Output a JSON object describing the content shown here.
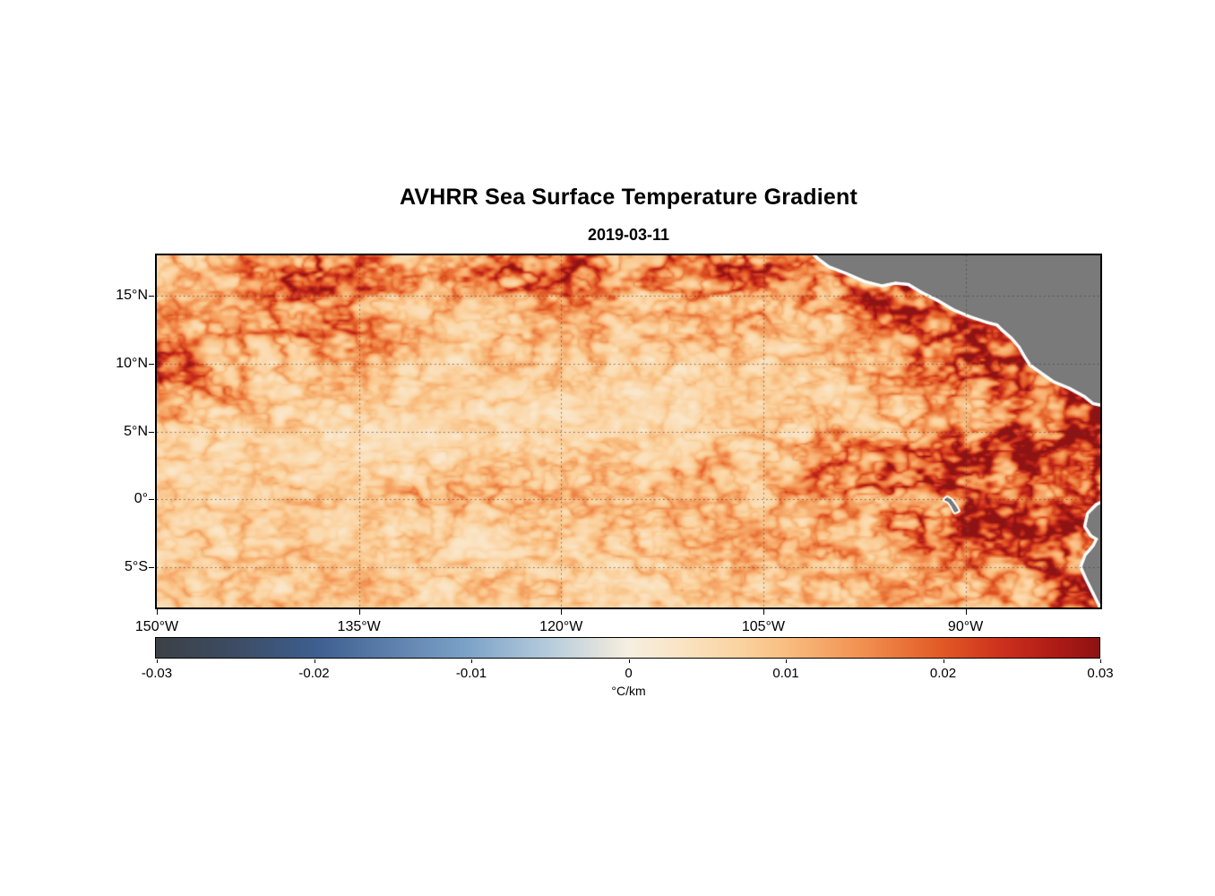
{
  "chart_data": {
    "type": "heatmap",
    "title": "AVHRR Sea Surface Temperature Gradient",
    "date": "2019-03-11",
    "lon_range": [
      -150,
      -80
    ],
    "lat_range": [
      18,
      -8
    ],
    "grid": true,
    "x_ticks": [
      {
        "value": -150,
        "label": "150°W"
      },
      {
        "value": -135,
        "label": "135°W"
      },
      {
        "value": -120,
        "label": "120°W"
      },
      {
        "value": -105,
        "label": "105°W"
      },
      {
        "value": -90,
        "label": "90°W"
      }
    ],
    "y_ticks": [
      {
        "value": 15,
        "label": "15°N"
      },
      {
        "value": 10,
        "label": "10°N"
      },
      {
        "value": 5,
        "label": "5°N"
      },
      {
        "value": 0,
        "label": "0°"
      },
      {
        "value": -5,
        "label": "5°S"
      }
    ],
    "colorbar": {
      "min": -0.03,
      "max": 0.03,
      "label": "°C/km",
      "ticks": [
        {
          "value": -0.03,
          "label": "-0.03"
        },
        {
          "value": -0.02,
          "label": "-0.02"
        },
        {
          "value": -0.01,
          "label": "-0.01"
        },
        {
          "value": 0,
          "label": "0"
        },
        {
          "value": 0.01,
          "label": "0.01"
        },
        {
          "value": 0.02,
          "label": "0.02"
        },
        {
          "value": 0.03,
          "label": "0.03"
        }
      ]
    },
    "colormap_stops": [
      {
        "t": 0.0,
        "c": "#3c4147"
      },
      {
        "t": 0.08,
        "c": "#3d4c63"
      },
      {
        "t": 0.17,
        "c": "#3e5f90"
      },
      {
        "t": 0.33,
        "c": "#7da3c9"
      },
      {
        "t": 0.42,
        "c": "#b9cede"
      },
      {
        "t": 0.48,
        "c": "#e8e6dd"
      },
      {
        "t": 0.5,
        "c": "#f6efe1"
      },
      {
        "t": 0.55,
        "c": "#fae6c8"
      },
      {
        "t": 0.62,
        "c": "#fbd3a0"
      },
      {
        "t": 0.67,
        "c": "#f9bd7f"
      },
      {
        "t": 0.75,
        "c": "#f29050"
      },
      {
        "t": 0.83,
        "c": "#e35c26"
      },
      {
        "t": 0.9,
        "c": "#cc2f1d"
      },
      {
        "t": 0.96,
        "c": "#ab1a16"
      },
      {
        "t": 1.0,
        "c": "#8e1313"
      }
    ],
    "land_color": "#7a7a7a",
    "coast_halo_color": "#ffffff",
    "magnitude_grid": {
      "description": "Approximate SST gradient magnitude (degC/km) read off the map on a coarse lon/lat grid; filament texture is procedurally superimposed.",
      "lons": [
        -150,
        -145,
        -140,
        -135,
        -130,
        -125,
        -120,
        -115,
        -110,
        -105,
        -100,
        -95,
        -90,
        -85,
        -80
      ],
      "lats": [
        18,
        16,
        14,
        12,
        10,
        8,
        6,
        4,
        2,
        0,
        -2,
        -4,
        -6,
        -8
      ],
      "values": [
        [
          0.008,
          0.012,
          0.018,
          0.015,
          0.012,
          0.02,
          0.022,
          0.015,
          0.02,
          0.018,
          0.015,
          0.012,
          0.01,
          0.0,
          0.0
        ],
        [
          0.006,
          0.01,
          0.02,
          0.018,
          0.01,
          0.015,
          0.02,
          0.012,
          0.015,
          0.02,
          0.012,
          0.022,
          0.015,
          0.0,
          0.0
        ],
        [
          0.012,
          0.008,
          0.015,
          0.012,
          0.008,
          0.01,
          0.012,
          0.01,
          0.012,
          0.012,
          0.01,
          0.025,
          0.012,
          0.0,
          0.0
        ],
        [
          0.01,
          0.012,
          0.014,
          0.015,
          0.008,
          0.008,
          0.01,
          0.008,
          0.01,
          0.008,
          0.008,
          0.012,
          0.024,
          0.018,
          0.0
        ],
        [
          0.022,
          0.01,
          0.008,
          0.01,
          0.006,
          0.008,
          0.008,
          0.006,
          0.006,
          0.006,
          0.008,
          0.012,
          0.022,
          0.024,
          0.0
        ],
        [
          0.015,
          0.012,
          0.006,
          0.008,
          0.006,
          0.006,
          0.006,
          0.005,
          0.005,
          0.006,
          0.006,
          0.01,
          0.015,
          0.018,
          0.024
        ],
        [
          0.01,
          0.008,
          0.006,
          0.005,
          0.005,
          0.005,
          0.005,
          0.004,
          0.005,
          0.006,
          0.008,
          0.01,
          0.012,
          0.02,
          0.028
        ],
        [
          0.008,
          0.006,
          0.005,
          0.005,
          0.004,
          0.005,
          0.006,
          0.006,
          0.008,
          0.008,
          0.012,
          0.015,
          0.018,
          0.022,
          0.024
        ],
        [
          0.006,
          0.006,
          0.006,
          0.005,
          0.006,
          0.008,
          0.008,
          0.008,
          0.01,
          0.012,
          0.018,
          0.022,
          0.025,
          0.02,
          0.022
        ],
        [
          0.008,
          0.006,
          0.008,
          0.006,
          0.012,
          0.01,
          0.008,
          0.008,
          0.008,
          0.01,
          0.012,
          0.015,
          0.02,
          0.015,
          0.018
        ],
        [
          0.006,
          0.008,
          0.006,
          0.006,
          0.006,
          0.006,
          0.008,
          0.008,
          0.01,
          0.01,
          0.012,
          0.015,
          0.022,
          0.025,
          0.022
        ],
        [
          0.008,
          0.006,
          0.008,
          0.006,
          0.008,
          0.006,
          0.006,
          0.008,
          0.008,
          0.01,
          0.01,
          0.012,
          0.015,
          0.02,
          0.025
        ],
        [
          0.006,
          0.008,
          0.006,
          0.008,
          0.006,
          0.008,
          0.008,
          0.006,
          0.008,
          0.008,
          0.01,
          0.01,
          0.012,
          0.015,
          0.028
        ],
        [
          0.008,
          0.006,
          0.008,
          0.006,
          0.008,
          0.006,
          0.008,
          0.008,
          0.006,
          0.008,
          0.008,
          0.01,
          0.01,
          0.012,
          0.02
        ]
      ]
    },
    "land_polygons": {
      "central_america": [
        [
          -101.6,
          18.6
        ],
        [
          -100.9,
          17.9
        ],
        [
          -100.1,
          17.3
        ],
        [
          -98.8,
          16.8
        ],
        [
          -97.4,
          16.2
        ],
        [
          -96.2,
          15.9
        ],
        [
          -95.2,
          16.1
        ],
        [
          -94.2,
          16.0
        ],
        [
          -93.2,
          15.4
        ],
        [
          -92.0,
          14.8
        ],
        [
          -90.8,
          14.1
        ],
        [
          -89.6,
          13.6
        ],
        [
          -88.4,
          13.2
        ],
        [
          -87.6,
          13.0
        ],
        [
          -87.2,
          12.6
        ],
        [
          -86.5,
          12.0
        ],
        [
          -85.9,
          11.3
        ],
        [
          -85.5,
          10.6
        ],
        [
          -85.1,
          10.0
        ],
        [
          -84.4,
          9.5
        ],
        [
          -83.4,
          8.8
        ],
        [
          -82.2,
          8.3
        ],
        [
          -81.1,
          7.7
        ],
        [
          -80.5,
          7.2
        ],
        [
          -80.0,
          7.1
        ],
        [
          -79.0,
          7.6
        ],
        [
          -78.5,
          19.0
        ]
      ],
      "south_america": [
        [
          -79.4,
          -0.2
        ],
        [
          -80.2,
          -0.5
        ],
        [
          -80.8,
          -1.1
        ],
        [
          -81.0,
          -2.0
        ],
        [
          -80.6,
          -2.6
        ],
        [
          -80.1,
          -2.9
        ],
        [
          -80.4,
          -3.5
        ],
        [
          -81.0,
          -4.2
        ],
        [
          -81.3,
          -5.0
        ],
        [
          -80.9,
          -5.9
        ],
        [
          -80.4,
          -6.9
        ],
        [
          -80.0,
          -7.7
        ],
        [
          -79.6,
          -8.6
        ],
        [
          -78.0,
          -8.6
        ],
        [
          -78.0,
          0.4
        ]
      ],
      "galapagos": [
        [
          -91.55,
          -0.05
        ],
        [
          -91.25,
          -0.2
        ],
        [
          -91.0,
          -0.55
        ],
        [
          -90.8,
          -0.95
        ],
        [
          -90.55,
          -0.85
        ],
        [
          -90.75,
          -0.5
        ],
        [
          -91.05,
          -0.1
        ],
        [
          -91.35,
          0.1
        ]
      ]
    }
  }
}
